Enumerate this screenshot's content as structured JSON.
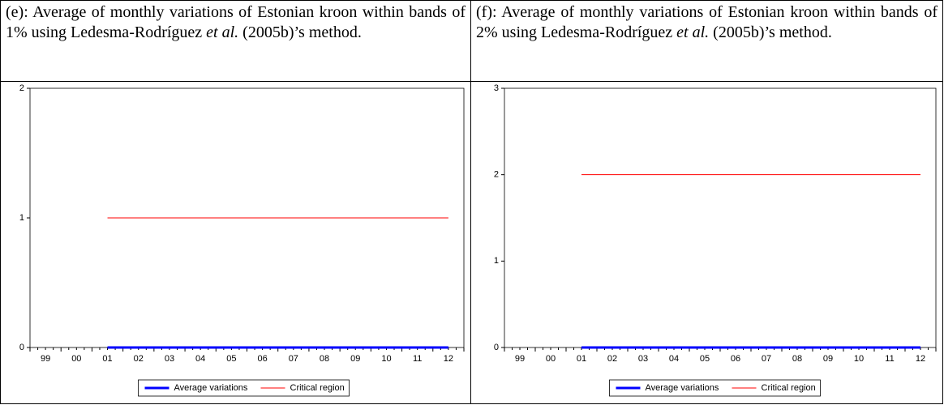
{
  "chart_data": [
    {
      "type": "line",
      "title_parts": [
        "(e): Average of monthly variations of Estonian kroon within bands of 1% using Ledesma-Rodríguez ",
        "et al.",
        " (2005b)’s method."
      ],
      "categories": [
        "99",
        "00",
        "01",
        "02",
        "03",
        "04",
        "05",
        "06",
        "07",
        "08",
        "09",
        "10",
        "11",
        "12"
      ],
      "series": [
        {
          "name": "Average variations",
          "color": "#0000ff",
          "values": [
            null,
            null,
            0,
            0,
            0,
            0,
            0,
            0,
            0,
            0,
            0,
            0,
            0,
            0
          ]
        },
        {
          "name": "Critical region",
          "color": "#ff0000",
          "values": [
            null,
            null,
            1,
            1,
            1,
            1,
            1,
            1,
            1,
            1,
            1,
            1,
            1,
            1
          ]
        }
      ],
      "ylim": [
        0,
        2
      ],
      "yticks": [
        0,
        1,
        2
      ]
    },
    {
      "type": "line",
      "title_parts": [
        "(f): Average of monthly variations of Estonian kroon within bands of 2% using Ledesma-Rodríguez ",
        "et al.",
        " (2005b)’s method."
      ],
      "categories": [
        "99",
        "00",
        "01",
        "02",
        "03",
        "04",
        "05",
        "06",
        "07",
        "08",
        "09",
        "10",
        "11",
        "12"
      ],
      "series": [
        {
          "name": "Average variations",
          "color": "#0000ff",
          "values": [
            null,
            null,
            0,
            0,
            0,
            0,
            0,
            0,
            0,
            0,
            0,
            0,
            0,
            0
          ]
        },
        {
          "name": "Critical region",
          "color": "#ff0000",
          "values": [
            null,
            null,
            2,
            2,
            2,
            2,
            2,
            2,
            2,
            2,
            2,
            2,
            2,
            2
          ]
        }
      ],
      "ylim": [
        0,
        3
      ],
      "yticks": [
        0,
        1,
        2,
        3
      ]
    }
  ]
}
